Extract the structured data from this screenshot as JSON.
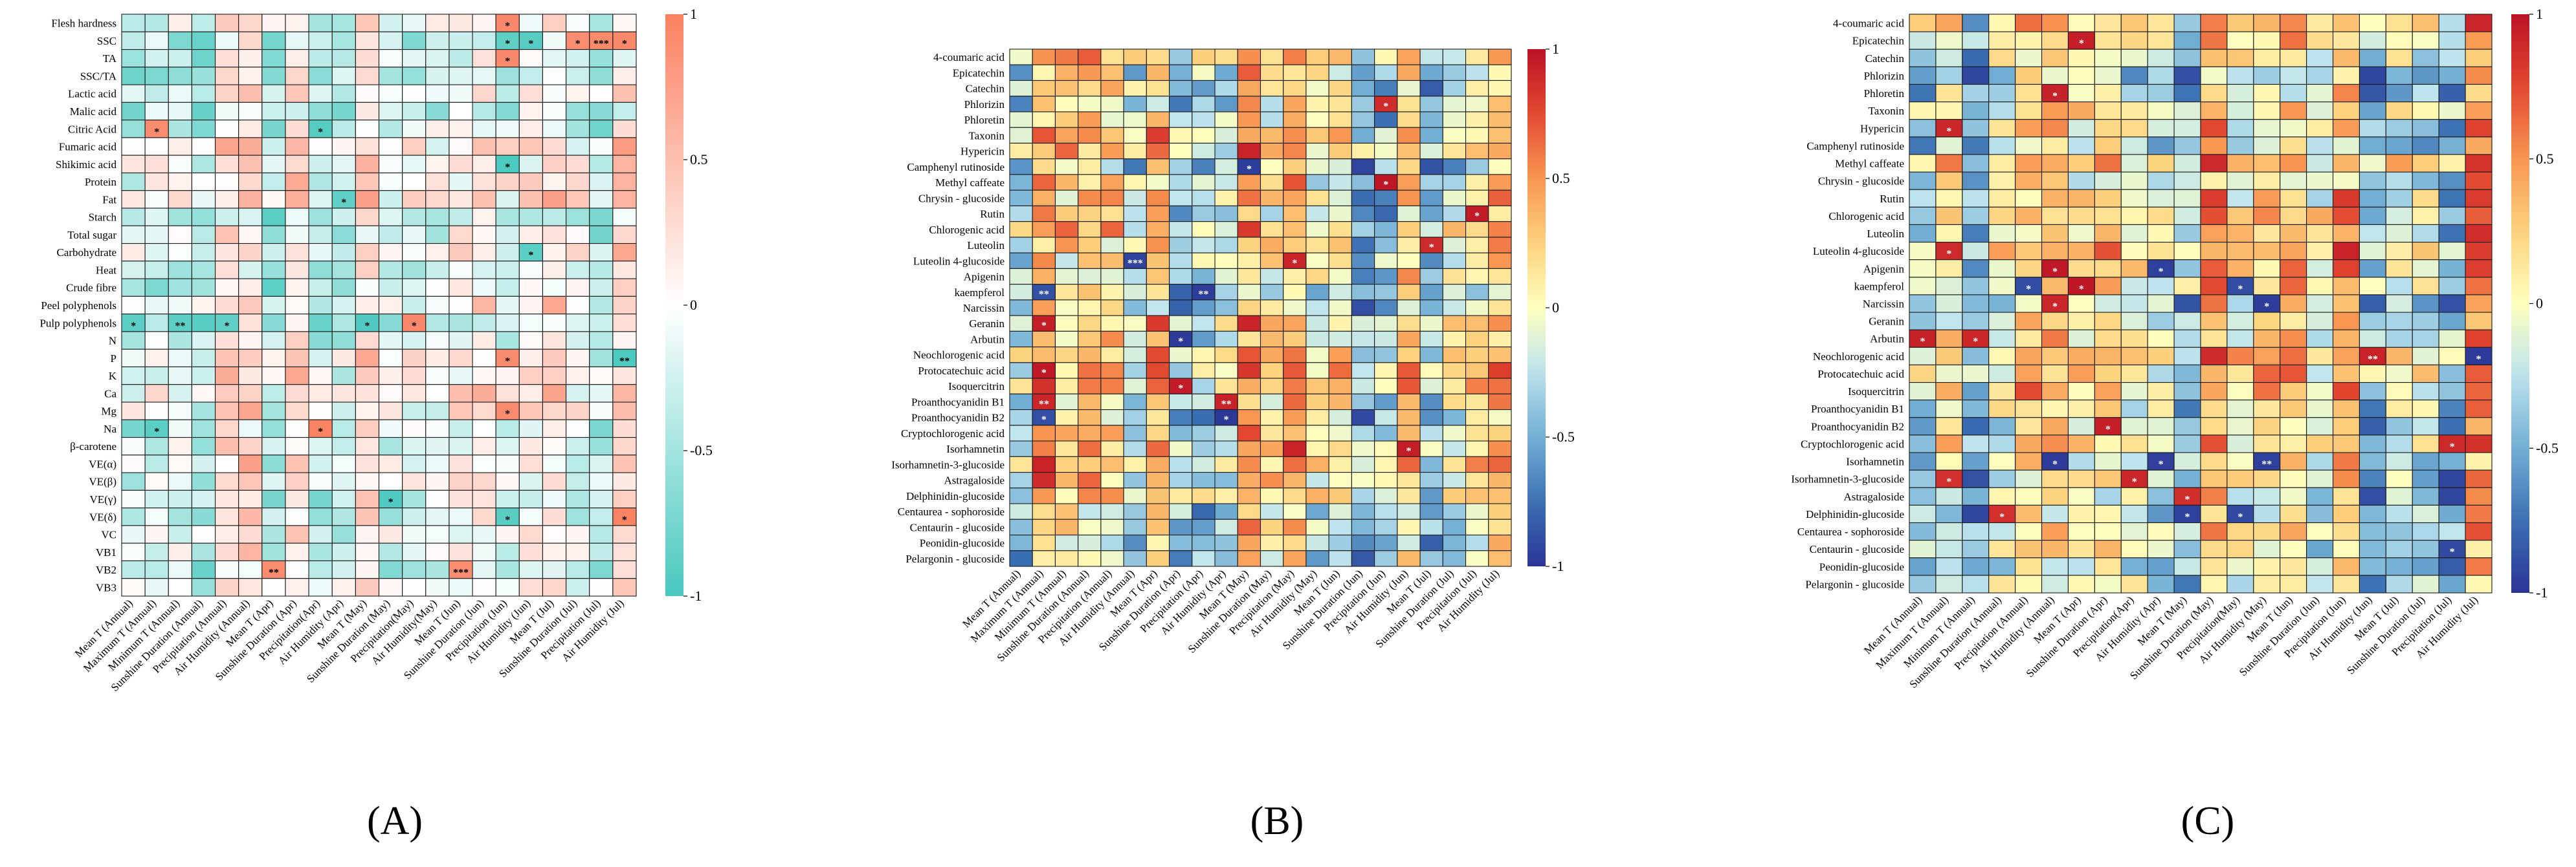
{
  "panels": [
    {
      "label": "(A)",
      "chart_data": {
        "type": "heatmap",
        "title": "",
        "colormap": "teal-white-salmon",
        "colorbar": {
          "min": -1,
          "max": 1,
          "ticks": [
            "1",
            "0.5",
            "0",
            "-0.5",
            "-1"
          ]
        },
        "rows": [
          "Flesh hardness",
          "SSC",
          "TA",
          "SSC/TA",
          "Lactic acid",
          "Malic acid",
          "Citric Acid",
          "Fumaric acid",
          "Shikimic acid",
          "Protein",
          "Fat",
          "Starch",
          "Total sugar",
          "Carbohydrate",
          "Heat",
          "Crude fibre",
          "Peel polyphenols",
          "Pulp polyphenols",
          "N",
          "P",
          "K",
          "Ca",
          "Mg",
          "Na",
          "β-carotene",
          "VE(α)",
          "VE(β)",
          "VE(γ)",
          "VE(δ)",
          "VC",
          "VB1",
          "VB2",
          "VB3"
        ],
        "columns": [
          "Mean T (Annual)",
          "Maximum T (Annual)",
          "Minimum T (Annual)",
          "Sunshine Duration (Annual)",
          "Precipitation (Annual)",
          "Air Humidity (Annual)",
          "Mean T (Apr)",
          "Sunshine Duration (Apr)",
          "Precipitation(Apr)",
          "Air Humidity (Apr)",
          "Mean T (May)",
          "Sunshine Duration (May)",
          "Precipitation(May)",
          "Air Humidity(May)",
          "Mean T (Jun)",
          "Sunshine Duration (Jun)",
          "Precipitation (Jun)",
          "Air Humidity (Jun)",
          "Mean T (Jul)",
          "Sunshine Duration (Jul)",
          "Precipitation (Jul)",
          "Air Humidity (Jul)"
        ],
        "significance": [
          {
            "row": "Flesh hardness",
            "col": "Precipitation (Jun)",
            "mark": "*"
          },
          {
            "row": "SSC",
            "col": "Precipitation (Jun)",
            "mark": "*"
          },
          {
            "row": "SSC",
            "col": "Air Humidity (Jun)",
            "mark": "*"
          },
          {
            "row": "SSC",
            "col": "Sunshine Duration (Jul)",
            "mark": "*"
          },
          {
            "row": "SSC",
            "col": "Precipitation (Jul)",
            "mark": "***"
          },
          {
            "row": "SSC",
            "col": "Air Humidity (Jul)",
            "mark": "*"
          },
          {
            "row": "TA",
            "col": "Precipitation (Jun)",
            "mark": "*"
          },
          {
            "row": "Citric Acid",
            "col": "Maximum T (Annual)",
            "mark": "*"
          },
          {
            "row": "Citric Acid",
            "col": "Precipitation(Apr)",
            "mark": "*"
          },
          {
            "row": "Shikimic acid",
            "col": "Precipitation (Jun)",
            "mark": "*"
          },
          {
            "row": "Fat",
            "col": "Air Humidity (Apr)",
            "mark": "*"
          },
          {
            "row": "Carbohydrate",
            "col": "Air Humidity (Jun)",
            "mark": "*"
          },
          {
            "row": "Pulp polyphenols",
            "col": "Mean T (Annual)",
            "mark": "*"
          },
          {
            "row": "Pulp polyphenols",
            "col": "Minimum T (Annual)",
            "mark": "**"
          },
          {
            "row": "Pulp polyphenols",
            "col": "Precipitation (Annual)",
            "mark": "*"
          },
          {
            "row": "Pulp polyphenols",
            "col": "Mean T (May)",
            "mark": "*"
          },
          {
            "row": "Pulp polyphenols",
            "col": "Precipitation(May)",
            "mark": "*"
          },
          {
            "row": "P",
            "col": "Precipitation (Jun)",
            "mark": "*"
          },
          {
            "row": "P",
            "col": "Air Humidity (Jul)",
            "mark": "**"
          },
          {
            "row": "Mg",
            "col": "Precipitation (Jun)",
            "mark": "*"
          },
          {
            "row": "Na",
            "col": "Maximum T (Annual)",
            "mark": "*"
          },
          {
            "row": "Na",
            "col": "Precipitation(Apr)",
            "mark": "*"
          },
          {
            "row": "VE(γ)",
            "col": "Sunshine Duration (May)",
            "mark": "*"
          },
          {
            "row": "VE(δ)",
            "col": "Precipitation (Jun)",
            "mark": "*"
          },
          {
            "row": "VE(δ)",
            "col": "Air Humidity (Jul)",
            "mark": "*"
          },
          {
            "row": "VB2",
            "col": "Mean T (Apr)",
            "mark": "**"
          },
          {
            "row": "VB2",
            "col": "Mean T (Jun)",
            "mark": "***"
          }
        ]
      }
    },
    {
      "label": "(B)",
      "chart_data": {
        "type": "heatmap",
        "title": "",
        "colormap": "RdYlBu",
        "colorbar": {
          "min": -1,
          "max": 1,
          "ticks": [
            "1",
            "0.5",
            "0",
            "-0.5",
            "-1"
          ]
        },
        "rows": [
          "4-coumaric acid",
          "Epicatechin",
          "Catechin",
          "Phlorizin",
          "Phloretin",
          "Taxonin",
          "Hypericin",
          "Camphenyl rutinoside",
          "Methyl caffeate",
          "Chrysin - glucoside",
          "Rutin",
          "Chlorogenic acid",
          "Luteolin",
          "Luteolin 4-glucoside",
          "Apigenin",
          "kaempferol",
          "Narcissin",
          "Geranin",
          "Arbutin",
          "Neochlorogenic acid",
          "Protocatechuic acid",
          "Isoquercitrin",
          "Proanthocyanidin B1",
          "Proanthocyanidin B2",
          "Cryptochlorogenic acid",
          "Isorhamnetin",
          "Isorhamnetin-3-glucoside",
          "Astragaloside",
          "Delphinidin-glucoside",
          "Centaurea - sophoroside",
          "Centaurin - glucoside",
          "Peonidin-glucoside",
          "Pelargonin - glucoside"
        ],
        "columns": [
          "Mean T (Annual)",
          "Maximum T (Annual)",
          "Minimum T (Annual)",
          "Sunshine Duration (Annual)",
          "Precipitation (Annual)",
          "Air Humidity (Annual)",
          "Mean T (Apr)",
          "Sunshine Duration (Apr)",
          "Precipitation (Apr)",
          "Air Humidity (Apr)",
          "Mean T (May)",
          "Sunshine Duration (May)",
          "Precipitation (May)",
          "Air Humidity (May)",
          "Mean T (Jun)",
          "Sunshine Duration (Jun)",
          "Precipitation (Jun)",
          "Air Humidity (Jun)",
          "Mean T (Jul)",
          "Sunshine Duration (Jul)",
          "Precipitation (Jul)",
          "Air Humidity (Jul)"
        ],
        "significance": [
          {
            "row": "Phlorizin",
            "col": "Precipitation (Jun)",
            "mark": "*"
          },
          {
            "row": "Camphenyl rutinoside",
            "col": "Mean T (May)",
            "mark": "*"
          },
          {
            "row": "Methyl caffeate",
            "col": "Precipitation (Jun)",
            "mark": "*"
          },
          {
            "row": "Rutin",
            "col": "Precipitation (Jul)",
            "mark": "*"
          },
          {
            "row": "Luteolin",
            "col": "Mean T (Jul)",
            "mark": "*"
          },
          {
            "row": "Luteolin 4-glucoside",
            "col": "Air Humidity (Annual)",
            "mark": "***"
          },
          {
            "row": "Luteolin 4-glucoside",
            "col": "Precipitation (May)",
            "mark": "*"
          },
          {
            "row": "kaempferol",
            "col": "Maximum T (Annual)",
            "mark": "**"
          },
          {
            "row": "kaempferol",
            "col": "Precipitation (Apr)",
            "mark": "**"
          },
          {
            "row": "Geranin",
            "col": "Maximum T (Annual)",
            "mark": "*"
          },
          {
            "row": "Arbutin",
            "col": "Sunshine Duration (Apr)",
            "mark": "*"
          },
          {
            "row": "Protocatechuic acid",
            "col": "Maximum T (Annual)",
            "mark": "*"
          },
          {
            "row": "Isoquercitrin",
            "col": "Sunshine Duration (Apr)",
            "mark": "*"
          },
          {
            "row": "Proanthocyanidin B1",
            "col": "Maximum T (Annual)",
            "mark": "**"
          },
          {
            "row": "Proanthocyanidin B1",
            "col": "Air Humidity (Apr)",
            "mark": "**"
          },
          {
            "row": "Proanthocyanidin B2",
            "col": "Maximum T (Annual)",
            "mark": "*"
          },
          {
            "row": "Proanthocyanidin B2",
            "col": "Air Humidity (Apr)",
            "mark": "*"
          },
          {
            "row": "Isorhamnetin",
            "col": "Air Humidity (Jun)",
            "mark": "*"
          }
        ]
      }
    },
    {
      "label": "(C)",
      "chart_data": {
        "type": "heatmap",
        "title": "",
        "colormap": "RdYlBu",
        "colorbar": {
          "min": -1,
          "max": 1,
          "ticks": [
            "1",
            "0.5",
            "0",
            "-0.5",
            "-1"
          ]
        },
        "rows": [
          "4-coumaric acid",
          "Epicatechin",
          "Catechin",
          "Phlorizin",
          "Phloretin",
          "Taxonin",
          "Hypericin",
          "Camphenyl rutinoside",
          "Methyl caffeate",
          "Chrysin - glucoside",
          "Rutin",
          "Chlorogenic acid",
          "Luteolin",
          "Luteolin 4-glucoside",
          "Apigenin",
          "kaempferol",
          "Narcissin",
          "Geranin",
          "Arbutin",
          "Neochlorogenic acid",
          "Protocatechuic acid",
          "Isoquercitrin",
          "Proanthocyanidin B1",
          "Proanthocyanidin B2",
          "Cryptochlorogenic acid",
          "Isorhamnetin",
          "Isorhamnetin-3-glucoside",
          "Astragaloside",
          "Delphinidin-glucoside",
          "Centaurea - sophoroside",
          "Centaurin - glucoside",
          "Peonidin-glucoside",
          "Pelargonin - glucoside"
        ],
        "columns": [
          "Mean T (Annual)",
          "Maximum T (Annual)",
          "Minimum T (Annual)",
          "Sunshine Duration (Annual)",
          "Precipitation (Annual)",
          "Air Humidity (Annual)",
          "Mean T (Apr)",
          "Sunshine Duration (Apr)",
          "Precipitation(Apr)",
          "Air Humidity (Apr)",
          "Mean T (May)",
          "Sunshine Duration (May)",
          "Precipitation(May)",
          "Air Humidity (May)",
          "Mean T (Jun)",
          "Sunshine Duration (Jun)",
          "Precipitation (Jun)",
          "Air Humidity (Jun)",
          "Mean T (Jul)",
          "Sunshine Duration (Jul)",
          "Precipitation (Jul)",
          "Air Humidity (Jul)"
        ],
        "significance": [
          {
            "row": "Epicatechin",
            "col": "Mean T (Apr)",
            "mark": "*"
          },
          {
            "row": "Phloretin",
            "col": "Air Humidity (Annual)",
            "mark": "*"
          },
          {
            "row": "Hypericin",
            "col": "Maximum T (Annual)",
            "mark": "*"
          },
          {
            "row": "Luteolin 4-glucoside",
            "col": "Maximum T (Annual)",
            "mark": "*"
          },
          {
            "row": "Apigenin",
            "col": "Air Humidity (Annual)",
            "mark": "*"
          },
          {
            "row": "Apigenin",
            "col": "Air Humidity (Apr)",
            "mark": "*"
          },
          {
            "row": "kaempferol",
            "col": "Precipitation (Annual)",
            "mark": "*"
          },
          {
            "row": "kaempferol",
            "col": "Mean T (Apr)",
            "mark": "*"
          },
          {
            "row": "kaempferol",
            "col": "Precipitation(May)",
            "mark": "*"
          },
          {
            "row": "Narcissin",
            "col": "Air Humidity (Annual)",
            "mark": "*"
          },
          {
            "row": "Narcissin",
            "col": "Air Humidity (May)",
            "mark": "*"
          },
          {
            "row": "Arbutin",
            "col": "Mean T (Annual)",
            "mark": "*"
          },
          {
            "row": "Arbutin",
            "col": "Minimum T (Annual)",
            "mark": "*"
          },
          {
            "row": "Neochlorogenic acid",
            "col": "Air Humidity (Jun)",
            "mark": "**"
          },
          {
            "row": "Neochlorogenic acid",
            "col": "Air Humidity (Jul)",
            "mark": "*"
          },
          {
            "row": "Proanthocyanidin B2",
            "col": "Sunshine Duration (Apr)",
            "mark": "*"
          },
          {
            "row": "Cryptochlorogenic acid",
            "col": "Precipitation (Jul)",
            "mark": "*"
          },
          {
            "row": "Isorhamnetin",
            "col": "Air Humidity (Annual)",
            "mark": "*"
          },
          {
            "row": "Isorhamnetin",
            "col": "Air Humidity (Apr)",
            "mark": "*"
          },
          {
            "row": "Isorhamnetin",
            "col": "Air Humidity (May)",
            "mark": "**"
          },
          {
            "row": "Isorhamnetin-3-glucoside",
            "col": "Maximum T (Annual)",
            "mark": "*"
          },
          {
            "row": "Isorhamnetin-3-glucoside",
            "col": "Precipitation(Apr)",
            "mark": "*"
          },
          {
            "row": "Astragaloside",
            "col": "Mean T (May)",
            "mark": "*"
          },
          {
            "row": "Delphinidin-glucoside",
            "col": "Sunshine Duration (Annual)",
            "mark": "*"
          },
          {
            "row": "Delphinidin-glucoside",
            "col": "Mean T (May)",
            "mark": "*"
          },
          {
            "row": "Delphinidin-glucoside",
            "col": "Precipitation(May)",
            "mark": "*"
          },
          {
            "row": "Centaurin - glucoside",
            "col": "Precipitation (Jul)",
            "mark": "*"
          }
        ]
      }
    }
  ]
}
